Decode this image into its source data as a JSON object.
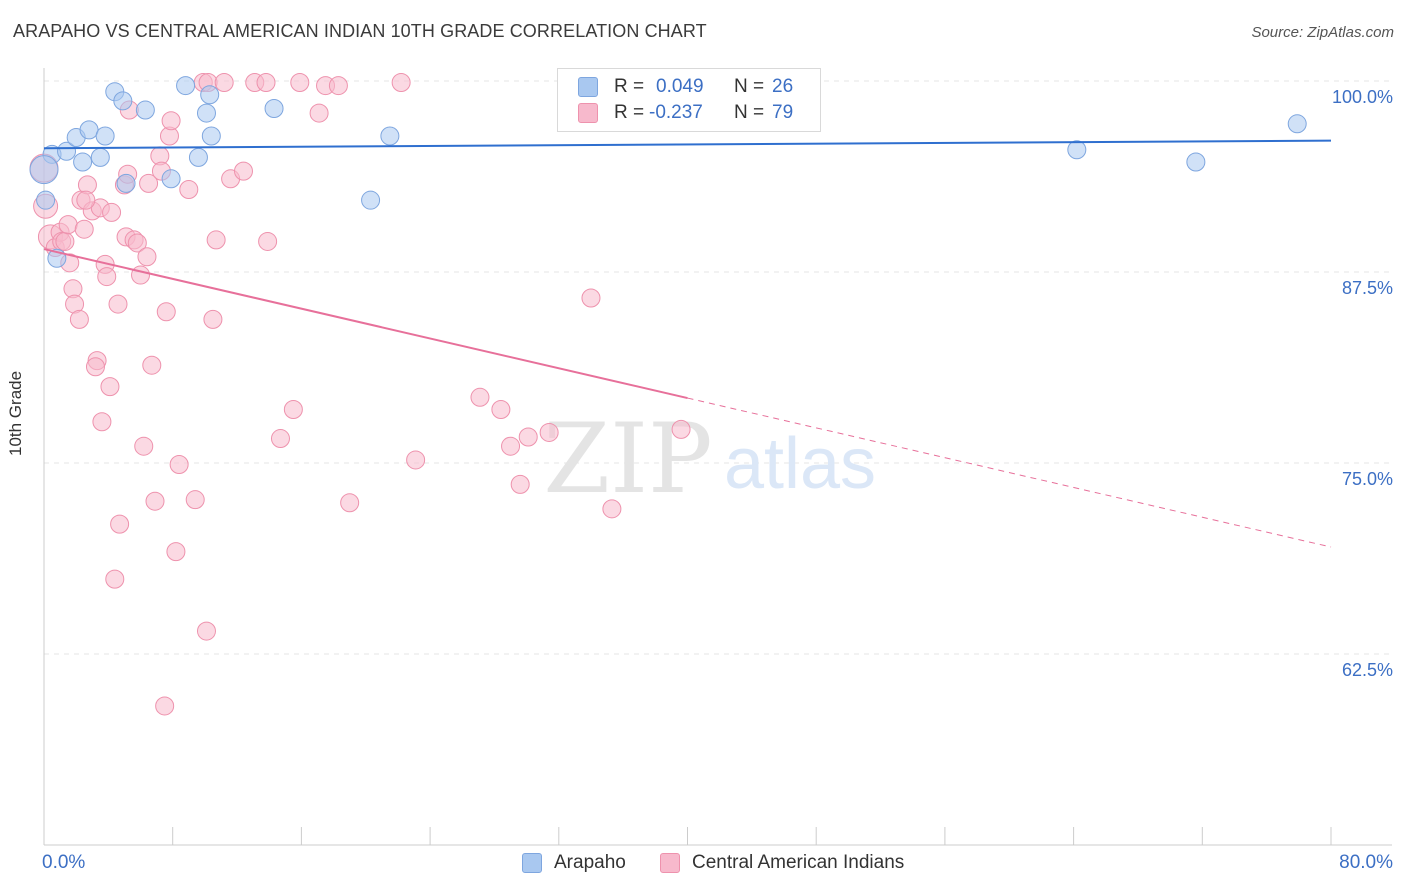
{
  "title": "ARAPAHO VS CENTRAL AMERICAN INDIAN 10TH GRADE CORRELATION CHART",
  "source": "Source: ZipAtlas.com",
  "watermark": {
    "zip": "ZIP",
    "atlas": "atlas"
  },
  "legend": {
    "r_label": "R =",
    "n_label": "N =",
    "arapaho": {
      "r": "0.049",
      "n": "26"
    },
    "central": {
      "r": "-0.237",
      "n": "79"
    }
  },
  "colors": {
    "arapaho_fill": "#a9c8f0",
    "arapaho_stroke": "#7ea6df",
    "arapaho_line": "#2f6fcf",
    "central_fill": "#f7b9cc",
    "central_stroke": "#ee92ad",
    "central_line": "#e7709a",
    "axis_text": "#3c6fc4",
    "grid": "#e6e6e6"
  },
  "chart_data": {
    "type": "scatter",
    "title": "ARAPAHO VS CENTRAL AMERICAN INDIAN 10TH GRADE CORRELATION CHART",
    "xlabel": "",
    "ylabel": "10th Grade",
    "xlim": [
      0,
      80
    ],
    "ylim": [
      50,
      100.5
    ],
    "x_tick_labels": {
      "left": "0.0%",
      "right": "80.0%"
    },
    "y_ticks": [
      {
        "value": 100.0,
        "label": "100.0%"
      },
      {
        "value": 87.5,
        "label": "87.5%"
      },
      {
        "value": 75.0,
        "label": "75.0%"
      },
      {
        "value": 62.5,
        "label": "62.5%"
      }
    ],
    "series": [
      {
        "name": "Arapaho",
        "r": 0.049,
        "n": 26,
        "trend": {
          "x0": 0,
          "y0": 95.6,
          "x1": 80,
          "y1": 96.1,
          "dashed_from": null
        },
        "points": [
          [
            0.1,
            92.2,
            9
          ],
          [
            0.5,
            95.2,
            9
          ],
          [
            0.8,
            88.4,
            9
          ],
          [
            1.4,
            95.4,
            9
          ],
          [
            2.0,
            96.3,
            9
          ],
          [
            2.4,
            94.7,
            9
          ],
          [
            2.8,
            96.8,
            9
          ],
          [
            3.5,
            95.0,
            9
          ],
          [
            3.8,
            96.4,
            9
          ],
          [
            4.4,
            99.3,
            9
          ],
          [
            4.9,
            98.7,
            9
          ],
          [
            5.1,
            93.3,
            9
          ],
          [
            6.3,
            98.1,
            9
          ],
          [
            7.9,
            93.6,
            9
          ],
          [
            8.8,
            99.7,
            9
          ],
          [
            9.6,
            95.0,
            9
          ],
          [
            10.1,
            97.9,
            9
          ],
          [
            10.3,
            99.1,
            9
          ],
          [
            10.4,
            96.4,
            9
          ],
          [
            14.3,
            98.2,
            9
          ],
          [
            20.3,
            92.2,
            9
          ],
          [
            21.5,
            96.4,
            9
          ],
          [
            64.2,
            95.5,
            9
          ],
          [
            71.6,
            94.7,
            9
          ],
          [
            77.9,
            97.2,
            9
          ],
          [
            0.0,
            94.2,
            14
          ]
        ]
      },
      {
        "name": "Central American Indians",
        "r": -0.237,
        "n": 79,
        "trend": {
          "x0": 0,
          "y0": 89.0,
          "x1": 80,
          "y1": 69.5,
          "dashed_from": 40
        },
        "points": [
          [
            0.0,
            94.3,
            14
          ],
          [
            0.1,
            91.8,
            12
          ],
          [
            0.4,
            89.8,
            12
          ],
          [
            0.7,
            89.1,
            9
          ],
          [
            1.0,
            90.1,
            9
          ],
          [
            1.1,
            89.5,
            9
          ],
          [
            1.3,
            89.5,
            9
          ],
          [
            1.5,
            90.6,
            9
          ],
          [
            1.6,
            88.1,
            9
          ],
          [
            1.8,
            86.4,
            9
          ],
          [
            1.9,
            85.4,
            9
          ],
          [
            2.2,
            84.4,
            9
          ],
          [
            2.3,
            92.2,
            9
          ],
          [
            2.5,
            90.3,
            9
          ],
          [
            2.7,
            93.2,
            9
          ],
          [
            3.0,
            91.5,
            9
          ],
          [
            3.3,
            81.7,
            9
          ],
          [
            3.5,
            91.7,
            9
          ],
          [
            3.6,
            77.7,
            9
          ],
          [
            3.8,
            88.0,
            9
          ],
          [
            3.9,
            87.2,
            9
          ],
          [
            4.1,
            80.0,
            9
          ],
          [
            4.2,
            91.4,
            9
          ],
          [
            4.4,
            67.4,
            9
          ],
          [
            4.6,
            85.4,
            9
          ],
          [
            4.7,
            71.0,
            9
          ],
          [
            5.0,
            93.2,
            9
          ],
          [
            5.1,
            89.8,
            9
          ],
          [
            5.2,
            93.9,
            9
          ],
          [
            5.3,
            98.1,
            9
          ],
          [
            5.6,
            89.6,
            9
          ],
          [
            5.8,
            89.4,
            9
          ],
          [
            6.0,
            87.3,
            9
          ],
          [
            6.2,
            76.1,
            9
          ],
          [
            6.4,
            88.5,
            9
          ],
          [
            6.5,
            93.3,
            9
          ],
          [
            6.7,
            81.4,
            9
          ],
          [
            6.9,
            72.5,
            9
          ],
          [
            7.2,
            95.1,
            9
          ],
          [
            7.3,
            94.1,
            9
          ],
          [
            7.5,
            59.1,
            9
          ],
          [
            7.6,
            84.9,
            9
          ],
          [
            7.8,
            96.4,
            9
          ],
          [
            7.9,
            97.4,
            9
          ],
          [
            8.2,
            69.2,
            9
          ],
          [
            8.4,
            74.9,
            9
          ],
          [
            9.0,
            92.9,
            9
          ],
          [
            9.4,
            72.6,
            9
          ],
          [
            9.9,
            99.9,
            9
          ],
          [
            10.1,
            64.0,
            9
          ],
          [
            10.2,
            99.9,
            9
          ],
          [
            10.5,
            84.4,
            9
          ],
          [
            10.7,
            89.6,
            9
          ],
          [
            11.2,
            99.9,
            9
          ],
          [
            11.6,
            93.6,
            9
          ],
          [
            12.4,
            94.1,
            9
          ],
          [
            13.1,
            99.9,
            9
          ],
          [
            13.8,
            99.9,
            9
          ],
          [
            13.9,
            89.5,
            9
          ],
          [
            14.7,
            76.6,
            9
          ],
          [
            15.5,
            78.5,
            9
          ],
          [
            15.9,
            99.9,
            9
          ],
          [
            17.1,
            97.9,
            9
          ],
          [
            17.5,
            99.7,
            9
          ],
          [
            18.3,
            99.7,
            9
          ],
          [
            19.0,
            72.4,
            9
          ],
          [
            22.2,
            99.9,
            9
          ],
          [
            23.1,
            75.2,
            9
          ],
          [
            27.1,
            79.3,
            9
          ],
          [
            28.4,
            78.5,
            9
          ],
          [
            29.0,
            76.1,
            9
          ],
          [
            29.6,
            73.6,
            9
          ],
          [
            30.1,
            76.7,
            9
          ],
          [
            31.4,
            77.0,
            9
          ],
          [
            34.0,
            85.8,
            9
          ],
          [
            35.3,
            72.0,
            9
          ],
          [
            39.6,
            77.2,
            9
          ],
          [
            3.2,
            81.3,
            9
          ],
          [
            2.6,
            92.2,
            9
          ]
        ]
      }
    ]
  }
}
